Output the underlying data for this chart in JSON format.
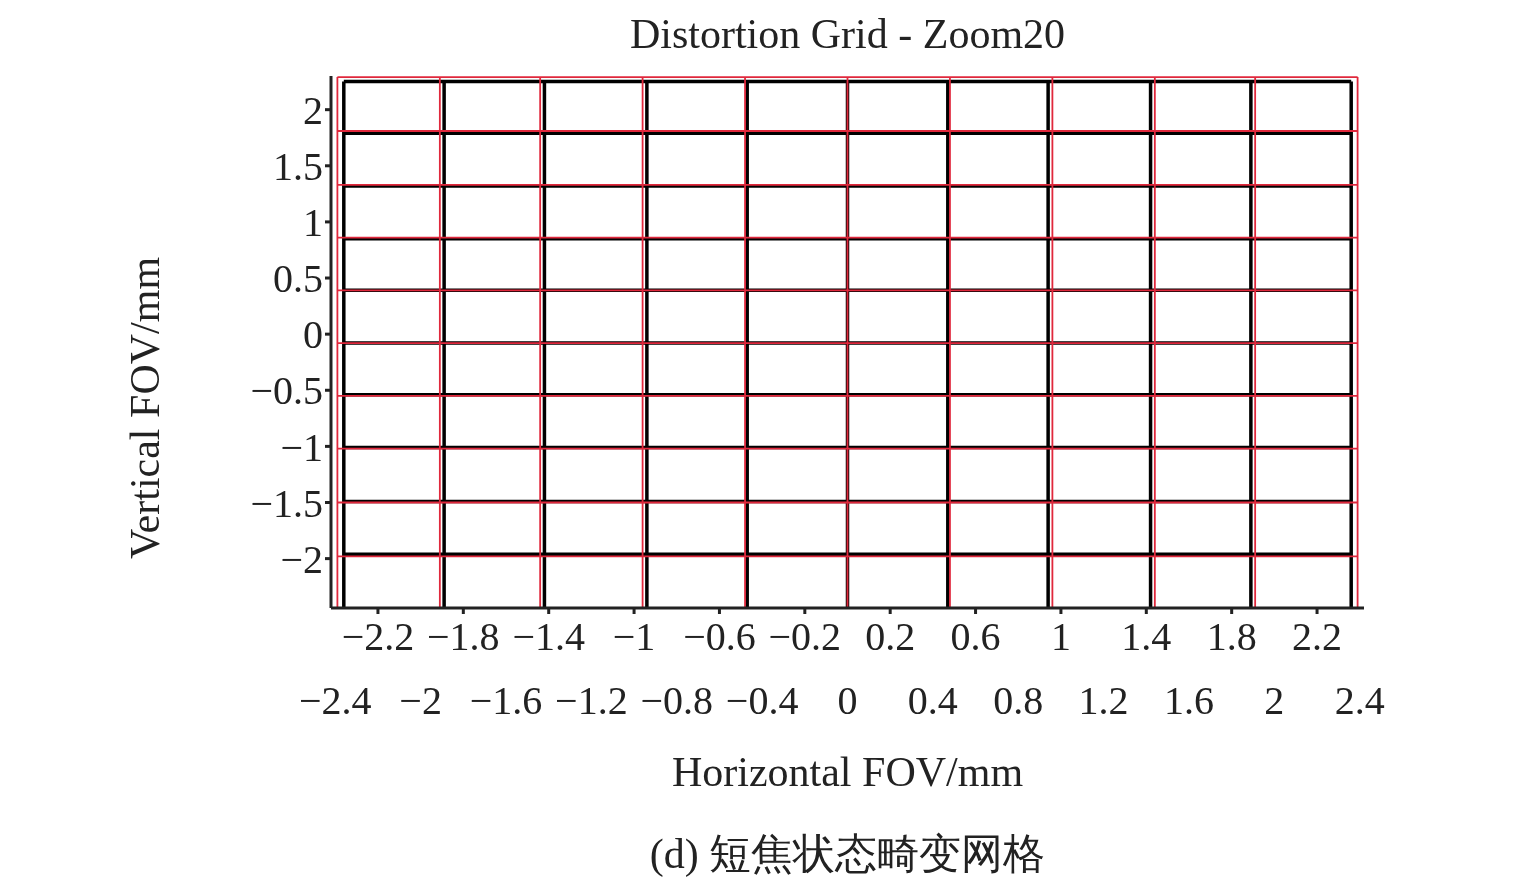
{
  "chart_data": {
    "type": "line",
    "title": "Distortion Grid - Zoom20",
    "xlabel": "Horizontal FOV/mm",
    "ylabel": "Vertical FOV/mm",
    "annotations": [
      "(d) 短焦状态畸变网格"
    ],
    "xlim": [
      -2.42,
      2.42
    ],
    "ylim": [
      -2.44,
      2.3
    ],
    "xticks": [
      -2.4,
      -2,
      -1.6,
      -1.2,
      -0.8,
      -0.4,
      0,
      0.4,
      0.8,
      1.2,
      1.6,
      2,
      2.4
    ],
    "x2lim": [
      -2.42,
      2.42
    ],
    "x2ticks": [
      -2.2,
      -1.8,
      -1.4,
      -1,
      -0.6,
      -0.2,
      0.2,
      0.6,
      1,
      1.4,
      1.8,
      2.2
    ],
    "yticks": [
      -2,
      -1.5,
      -1,
      -0.5,
      0,
      0.5,
      1,
      1.5,
      2
    ],
    "marker": "none",
    "line_style": "solid",
    "series": [
      {
        "color": "#000000",
        "x": [
          -2.36,
          -2.36
        ],
        "values": [
          2.25,
          -2.43
        ]
      },
      {
        "color": "#000000",
        "x": [
          -1.89,
          -1.89
        ],
        "values": [
          2.25,
          -2.43
        ]
      },
      {
        "color": "#000000",
        "x": [
          -1.42,
          -1.42
        ],
        "values": [
          2.25,
          -2.43
        ]
      },
      {
        "color": "#000000",
        "x": [
          -0.94,
          -0.94
        ],
        "values": [
          2.25,
          -2.43
        ]
      },
      {
        "color": "#000000",
        "x": [
          -0.47,
          -0.47
        ],
        "values": [
          2.25,
          -2.43
        ]
      },
      {
        "color": "#000000",
        "x": [
          0,
          0
        ],
        "values": [
          2.25,
          -2.43
        ]
      },
      {
        "color": "#000000",
        "x": [
          0.47,
          0.47
        ],
        "values": [
          2.25,
          -2.43
        ]
      },
      {
        "color": "#000000",
        "x": [
          0.94,
          0.94
        ],
        "values": [
          2.25,
          -2.43
        ]
      },
      {
        "color": "#000000",
        "x": [
          1.42,
          1.42
        ],
        "values": [
          2.25,
          -2.43
        ]
      },
      {
        "color": "#000000",
        "x": [
          1.89,
          1.89
        ],
        "values": [
          2.25,
          -2.43
        ]
      },
      {
        "color": "#000000",
        "x": [
          2.36,
          2.36
        ],
        "values": [
          2.25,
          -2.43
        ]
      },
      {
        "color": "#000000",
        "x": [
          -2.36,
          2.36
        ],
        "values": [
          2.25,
          2.25
        ]
      },
      {
        "color": "#000000",
        "x": [
          -2.36,
          2.36
        ],
        "values": [
          1.79,
          1.79
        ]
      },
      {
        "color": "#000000",
        "x": [
          -2.36,
          2.36
        ],
        "values": [
          1.32,
          1.32
        ]
      },
      {
        "color": "#000000",
        "x": [
          -2.36,
          2.36
        ],
        "values": [
          0.85,
          0.85
        ]
      },
      {
        "color": "#000000",
        "x": [
          -2.36,
          2.36
        ],
        "values": [
          0.39,
          0.39
        ]
      },
      {
        "color": "#000000",
        "x": [
          -2.36,
          2.36
        ],
        "values": [
          -0.08,
          -0.08
        ]
      },
      {
        "color": "#000000",
        "x": [
          -2.36,
          2.36
        ],
        "values": [
          -0.54,
          -0.54
        ]
      },
      {
        "color": "#000000",
        "x": [
          -2.36,
          2.36
        ],
        "values": [
          -1.01,
          -1.01
        ]
      },
      {
        "color": "#000000",
        "x": [
          -2.36,
          2.36
        ],
        "values": [
          -1.49,
          -1.49
        ]
      },
      {
        "color": "#000000",
        "x": [
          -2.36,
          2.36
        ],
        "values": [
          -1.96,
          -1.96
        ]
      },
      {
        "color": "#e0283c",
        "x": [
          -2.39,
          -2.39
        ],
        "values": [
          2.29,
          -2.43
        ]
      },
      {
        "color": "#e0283c",
        "x": [
          -1.91,
          -1.91
        ],
        "values": [
          2.29,
          -2.43
        ]
      },
      {
        "color": "#e0283c",
        "x": [
          -1.44,
          -1.44
        ],
        "values": [
          2.29,
          -2.43
        ]
      },
      {
        "color": "#e0283c",
        "x": [
          -0.96,
          -0.96
        ],
        "values": [
          2.29,
          -2.43
        ]
      },
      {
        "color": "#e0283c",
        "x": [
          -0.48,
          -0.48
        ],
        "values": [
          2.29,
          -2.43
        ]
      },
      {
        "color": "#e0283c",
        "x": [
          0,
          0
        ],
        "values": [
          2.29,
          -2.43
        ]
      },
      {
        "color": "#e0283c",
        "x": [
          0.48,
          0.48
        ],
        "values": [
          2.29,
          -2.43
        ]
      },
      {
        "color": "#e0283c",
        "x": [
          0.96,
          0.96
        ],
        "values": [
          2.29,
          -2.43
        ]
      },
      {
        "color": "#e0283c",
        "x": [
          1.44,
          1.44
        ],
        "values": [
          2.29,
          -2.43
        ]
      },
      {
        "color": "#e0283c",
        "x": [
          1.91,
          1.91
        ],
        "values": [
          2.29,
          -2.43
        ]
      },
      {
        "color": "#e0283c",
        "x": [
          2.39,
          2.39
        ],
        "values": [
          2.29,
          -2.43
        ]
      },
      {
        "color": "#e0283c",
        "x": [
          -2.39,
          2.39
        ],
        "values": [
          2.29,
          2.29
        ]
      },
      {
        "color": "#e0283c",
        "x": [
          -2.39,
          2.39
        ],
        "values": [
          1.81,
          1.81
        ]
      },
      {
        "color": "#e0283c",
        "x": [
          -2.39,
          2.39
        ],
        "values": [
          1.33,
          1.33
        ]
      },
      {
        "color": "#e0283c",
        "x": [
          -2.39,
          2.39
        ],
        "values": [
          0.86,
          0.86
        ]
      },
      {
        "color": "#e0283c",
        "x": [
          -2.39,
          2.39
        ],
        "values": [
          0.39,
          0.39
        ]
      },
      {
        "color": "#e0283c",
        "x": [
          -2.39,
          2.39
        ],
        "values": [
          -0.08,
          -0.08
        ]
      },
      {
        "color": "#e0283c",
        "x": [
          -2.39,
          2.39
        ],
        "values": [
          -0.55,
          -0.55
        ]
      },
      {
        "color": "#e0283c",
        "x": [
          -2.39,
          2.39
        ],
        "values": [
          -1.02,
          -1.02
        ]
      },
      {
        "color": "#e0283c",
        "x": [
          -2.39,
          2.39
        ],
        "values": [
          -1.5,
          -1.5
        ]
      },
      {
        "color": "#e0283c",
        "x": [
          -2.39,
          2.39
        ],
        "values": [
          -1.98,
          -1.98
        ]
      }
    ]
  }
}
